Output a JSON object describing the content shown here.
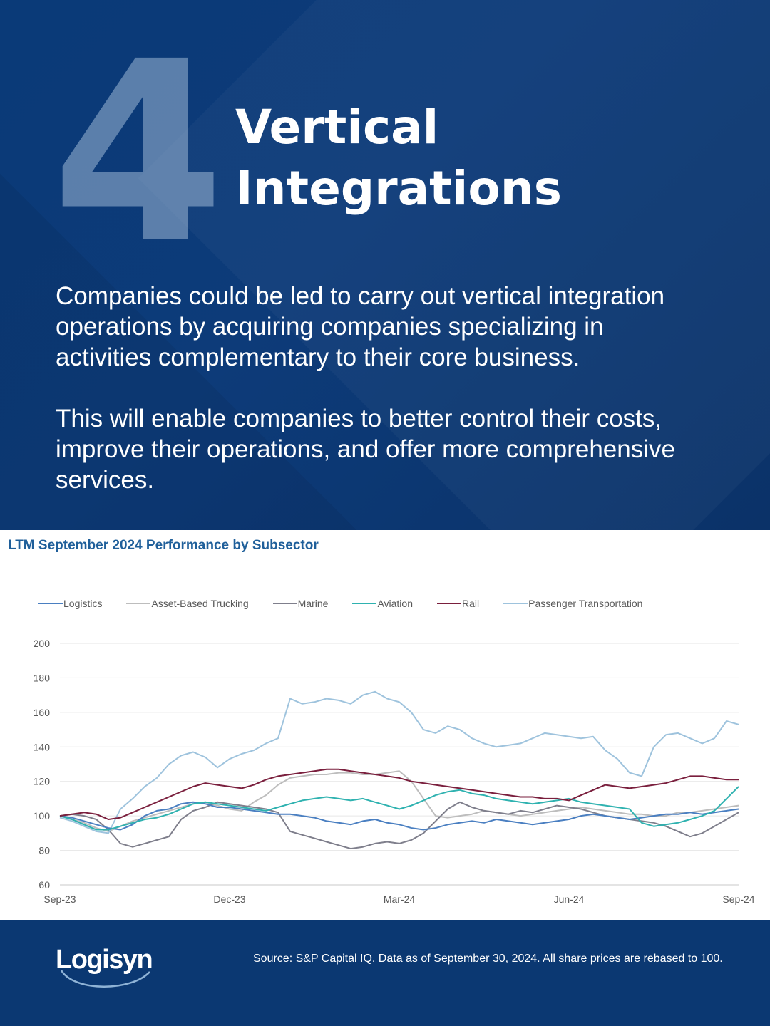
{
  "hero": {
    "number": "4",
    "title_line1": "Vertical",
    "title_line2": "Integrations",
    "paragraph1": "Companies could be led to carry out vertical integration operations by acquiring companies specializing in activities complementary to their core business.",
    "paragraph2": "This will enable companies to better control their costs, improve their operations, and offer more comprehensive services."
  },
  "footer": {
    "logo_text": "Logisyn",
    "source": "Source: S&P Capital IQ. Data as of September 30, 2024. All share prices are rebased to 100."
  },
  "colors": {
    "background": "#0b3872",
    "accent": "#1f5f9a"
  },
  "chart_data": {
    "type": "line",
    "title": "LTM September 2024 Performance by Subsector",
    "xlabel": "",
    "ylabel": "",
    "x_ticks": [
      "Sep-23",
      "Dec-23",
      "Mar-24",
      "Jun-24",
      "Sep-24"
    ],
    "y_ticks": [
      60,
      80,
      100,
      120,
      140,
      160,
      180,
      200
    ],
    "ylim": [
      60,
      200
    ],
    "grid": true,
    "legend_position": "top",
    "series": [
      {
        "name": "Logistics",
        "color": "#4a7fc1",
        "values": [
          100,
          99,
          97,
          95,
          93,
          92,
          95,
          100,
          103,
          104,
          107,
          108,
          107,
          105,
          105,
          104,
          103,
          102,
          101,
          101,
          100,
          99,
          97,
          96,
          95,
          97,
          98,
          96,
          95,
          93,
          92,
          93,
          95,
          96,
          97,
          96,
          98,
          97,
          96,
          95,
          96,
          97,
          98,
          100,
          101,
          100,
          99,
          98,
          99,
          100,
          101,
          101,
          102,
          101,
          102,
          103,
          104
        ]
      },
      {
        "name": "Asset-Based Trucking",
        "color": "#bdbdbd",
        "values": [
          100,
          98,
          96,
          93,
          91,
          94,
          97,
          99,
          101,
          103,
          105,
          107,
          108,
          106,
          104,
          103,
          108,
          112,
          118,
          122,
          123,
          124,
          124,
          125,
          125,
          124,
          124,
          125,
          126,
          120,
          110,
          100,
          99,
          100,
          101,
          103,
          102,
          101,
          100,
          101,
          102,
          103,
          104,
          105,
          104,
          103,
          102,
          101,
          101,
          100,
          100,
          102,
          102,
          103,
          104,
          105,
          106
        ]
      },
      {
        "name": "Marine",
        "color": "#7f7f8c",
        "values": [
          100,
          101,
          100,
          98,
          92,
          84,
          82,
          84,
          86,
          88,
          98,
          103,
          105,
          108,
          107,
          106,
          105,
          104,
          102,
          91,
          89,
          87,
          85,
          83,
          81,
          82,
          84,
          85,
          84,
          86,
          90,
          97,
          104,
          108,
          105,
          103,
          102,
          101,
          103,
          102,
          104,
          106,
          105,
          104,
          102,
          100,
          99,
          98,
          97,
          96,
          94,
          91,
          88,
          90,
          94,
          98,
          102
        ]
      },
      {
        "name": "Aviation",
        "color": "#2fb2b0",
        "values": [
          100,
          98,
          95,
          92,
          92,
          94,
          96,
          98,
          99,
          101,
          104,
          107,
          108,
          107,
          106,
          105,
          104,
          103,
          105,
          107,
          109,
          110,
          111,
          110,
          109,
          110,
          108,
          106,
          104,
          106,
          109,
          112,
          114,
          115,
          113,
          112,
          110,
          109,
          108,
          107,
          108,
          109,
          110,
          108,
          107,
          106,
          105,
          104,
          96,
          94,
          95,
          96,
          98,
          100,
          103,
          110,
          117
        ]
      },
      {
        "name": "Rail",
        "color": "#7a1f3d",
        "values": [
          100,
          101,
          102,
          101,
          98,
          99,
          102,
          105,
          108,
          111,
          114,
          117,
          119,
          118,
          117,
          116,
          118,
          121,
          123,
          124,
          125,
          126,
          127,
          127,
          126,
          125,
          124,
          123,
          122,
          120,
          119,
          118,
          117,
          116,
          115,
          114,
          113,
          112,
          111,
          111,
          110,
          110,
          109,
          112,
          115,
          118,
          117,
          116,
          117,
          118,
          119,
          121,
          123,
          123,
          122,
          121,
          121
        ]
      },
      {
        "name": "Passenger Transportation",
        "color": "#9ec3dd",
        "values": [
          99,
          97,
          94,
          91,
          90,
          104,
          110,
          117,
          122,
          130,
          135,
          137,
          134,
          128,
          133,
          136,
          138,
          142,
          145,
          168,
          165,
          166,
          168,
          167,
          165,
          170,
          172,
          168,
          166,
          160,
          150,
          148,
          152,
          150,
          145,
          142,
          140,
          141,
          142,
          145,
          148,
          147,
          146,
          145,
          146,
          138,
          133,
          125,
          123,
          140,
          147,
          148,
          145,
          142,
          145,
          155,
          153
        ]
      }
    ]
  }
}
